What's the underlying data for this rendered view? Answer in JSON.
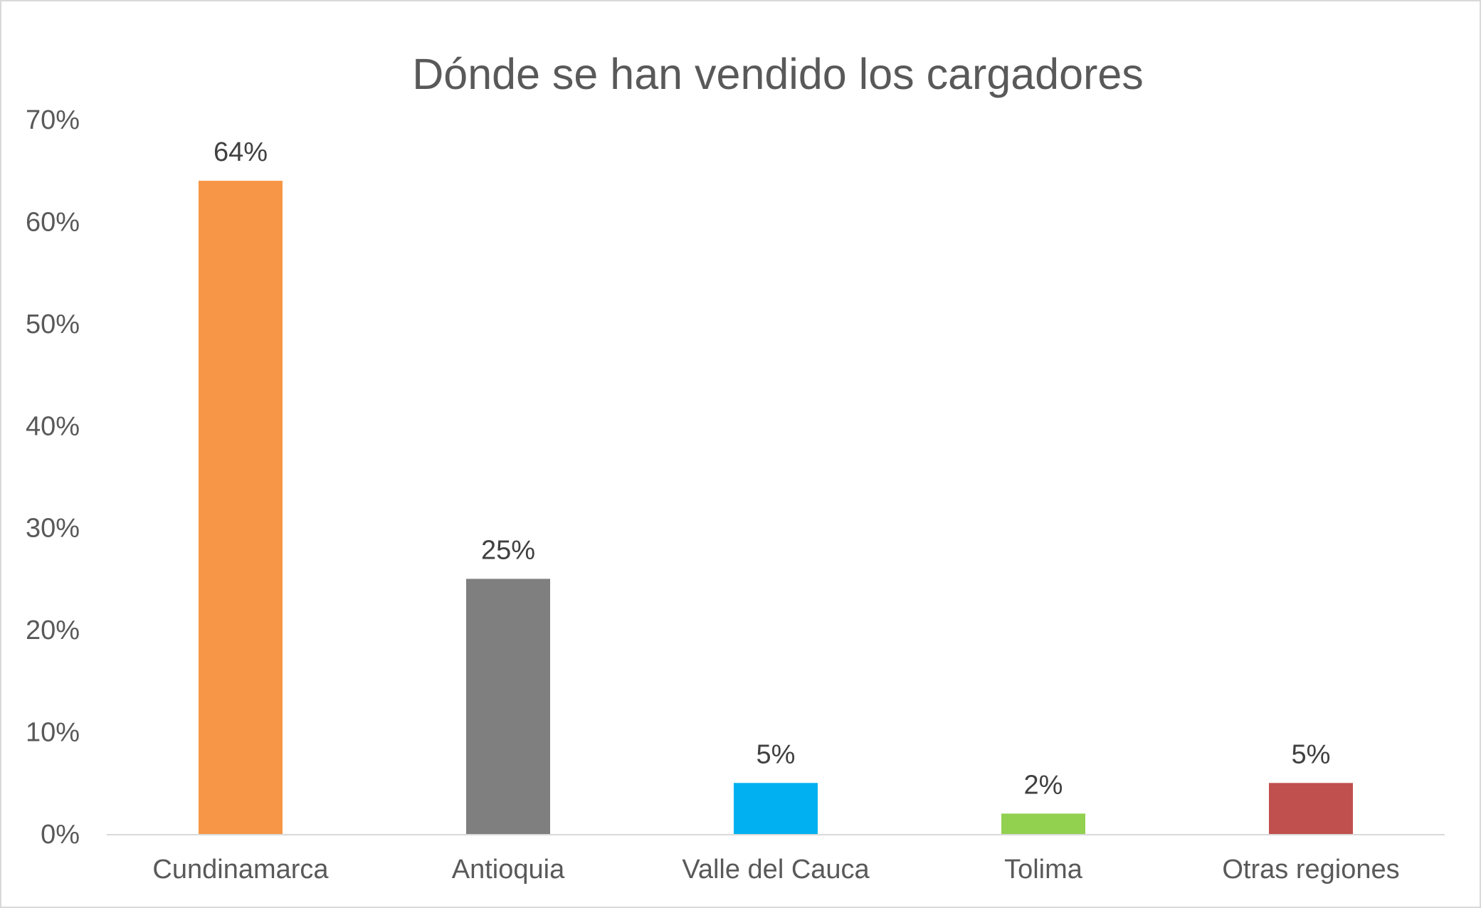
{
  "chart_data": {
    "type": "bar",
    "title": "Dónde se han vendido los cargadores",
    "xlabel": "",
    "ylabel": "",
    "categories": [
      "Cundinamarca",
      "Antioquia",
      "Valle del Cauca",
      "Tolima",
      "Otras regiones"
    ],
    "values": [
      64,
      25,
      5,
      2,
      5
    ],
    "data_labels": [
      "64%",
      "25%",
      "5%",
      "2%",
      "5%"
    ],
    "colors": [
      "#F79646",
      "#7F7F7F",
      "#00B0F0",
      "#92D050",
      "#C0504D"
    ],
    "ylim": [
      0,
      70
    ],
    "yticks": [
      0,
      10,
      20,
      30,
      40,
      50,
      60,
      70
    ],
    "ytick_labels": [
      "0%",
      "10%",
      "20%",
      "30%",
      "40%",
      "50%",
      "60%",
      "70%"
    ],
    "grid": false,
    "legend": "none"
  }
}
